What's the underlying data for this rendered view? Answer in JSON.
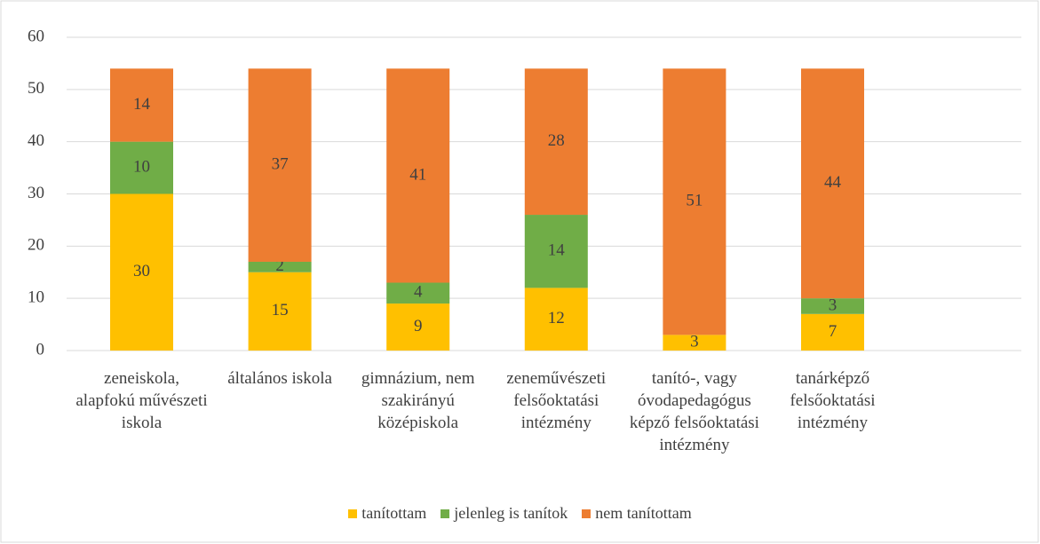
{
  "chart_data": {
    "type": "stacked_bar",
    "categories": [
      "zeneiskola, alapfokú művészeti iskola",
      "általános iskola",
      "gimnázium, nem szakirányú középiskola",
      "zeneművészeti felsőoktatási intézmény",
      "tanító-, vagy óvodapedagógus képző felsőoktatási intézmény",
      "tanárképző felsőoktatási intézmény"
    ],
    "series": [
      {
        "name": "tanítottam",
        "color": "#ffc000",
        "values": [
          30,
          15,
          9,
          12,
          3,
          7
        ]
      },
      {
        "name": "jelenleg is tanítok",
        "color": "#70ad47",
        "values": [
          10,
          2,
          4,
          14,
          0,
          3
        ]
      },
      {
        "name": "nem tanítottam",
        "color": "#ed7d31",
        "values": [
          14,
          37,
          41,
          28,
          51,
          44
        ]
      }
    ],
    "ylim": [
      0,
      60
    ],
    "yticks": [
      0,
      10,
      20,
      30,
      40,
      50,
      60
    ],
    "grid": true,
    "legend": "bottom"
  }
}
